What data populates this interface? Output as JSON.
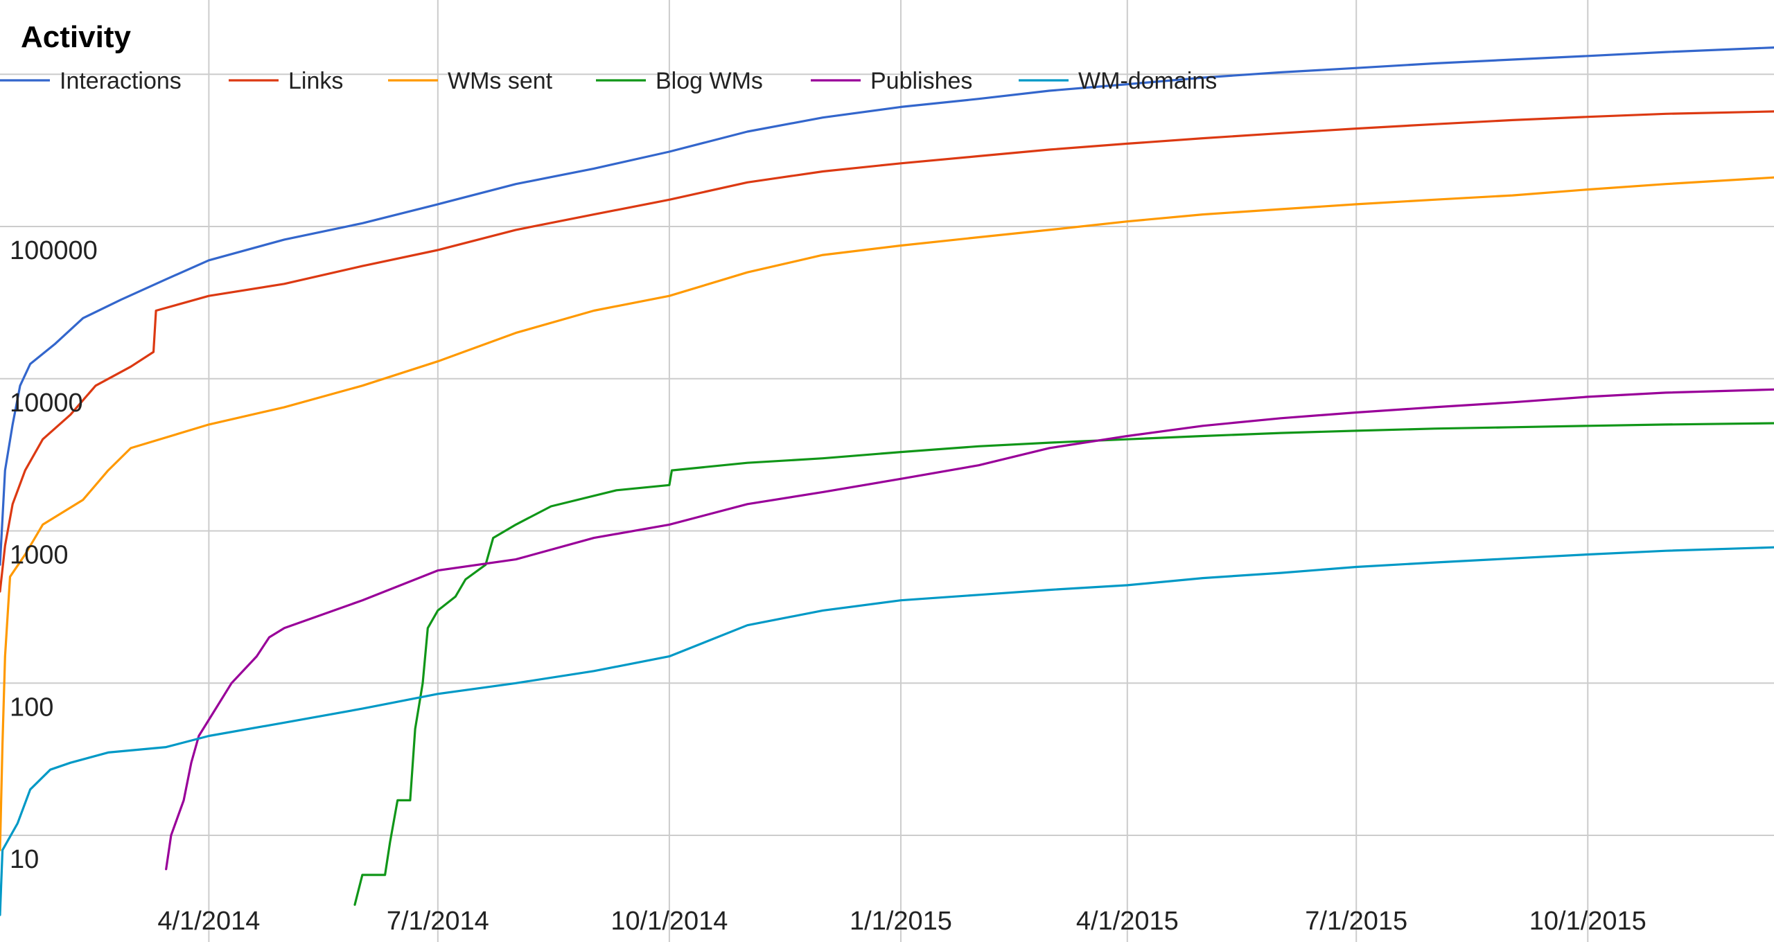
{
  "chart_data": {
    "type": "line",
    "title": "Activity",
    "xlabel": "",
    "ylabel": "",
    "y_scale": "log",
    "x_ticks": [
      "4/1/2014",
      "7/1/2014",
      "10/1/2014",
      "1/1/2015",
      "4/1/2015",
      "7/1/2015",
      "10/1/2015"
    ],
    "y_ticks": [
      10,
      100,
      1000,
      10000,
      100000
    ],
    "y_tick_labels": [
      "10",
      "100",
      "1000",
      "10000",
      "100000"
    ],
    "xlim": [
      "2014-01-08",
      "2015-12-14"
    ],
    "ylim": [
      3,
      2000000
    ],
    "grid": true,
    "legend_position": "top",
    "series": [
      {
        "name": "Interactions",
        "color": "#3366cc",
        "points": [
          [
            "2014-01-08",
            600
          ],
          [
            "2014-01-10",
            2500
          ],
          [
            "2014-01-13",
            5000
          ],
          [
            "2014-01-16",
            9000
          ],
          [
            "2014-01-20",
            12500
          ],
          [
            "2014-01-30",
            17000
          ],
          [
            "2014-02-10",
            25000
          ],
          [
            "2014-02-25",
            33000
          ],
          [
            "2014-03-15",
            45000
          ],
          [
            "2014-04-01",
            60000
          ],
          [
            "2014-05-01",
            82000
          ],
          [
            "2014-06-01",
            105000
          ],
          [
            "2014-07-01",
            140000
          ],
          [
            "2014-08-01",
            190000
          ],
          [
            "2014-09-01",
            240000
          ],
          [
            "2014-10-01",
            310000
          ],
          [
            "2014-11-01",
            420000
          ],
          [
            "2014-12-01",
            520000
          ],
          [
            "2015-01-01",
            610000
          ],
          [
            "2015-02-01",
            690000
          ],
          [
            "2015-03-01",
            780000
          ],
          [
            "2015-04-01",
            860000
          ],
          [
            "2015-05-01",
            950000
          ],
          [
            "2015-06-01",
            1030000
          ],
          [
            "2015-07-01",
            1100000
          ],
          [
            "2015-08-01",
            1180000
          ],
          [
            "2015-09-01",
            1250000
          ],
          [
            "2015-10-01",
            1320000
          ],
          [
            "2015-11-01",
            1400000
          ],
          [
            "2015-12-14",
            1500000
          ]
        ]
      },
      {
        "name": "Links",
        "color": "#dc3912",
        "points": [
          [
            "2014-01-08",
            400
          ],
          [
            "2014-01-10",
            800
          ],
          [
            "2014-01-13",
            1500
          ],
          [
            "2014-01-18",
            2500
          ],
          [
            "2014-01-25",
            4000
          ],
          [
            "2014-02-05",
            5800
          ],
          [
            "2014-02-15",
            9000
          ],
          [
            "2014-03-01",
            12000
          ],
          [
            "2014-03-10",
            15000
          ],
          [
            "2014-03-11",
            28000
          ],
          [
            "2014-04-01",
            35000
          ],
          [
            "2014-05-01",
            42000
          ],
          [
            "2014-06-01",
            55000
          ],
          [
            "2014-07-01",
            70000
          ],
          [
            "2014-08-01",
            95000
          ],
          [
            "2014-09-01",
            120000
          ],
          [
            "2014-10-01",
            150000
          ],
          [
            "2014-11-01",
            195000
          ],
          [
            "2014-12-01",
            230000
          ],
          [
            "2015-01-01",
            260000
          ],
          [
            "2015-02-01",
            290000
          ],
          [
            "2015-03-01",
            320000
          ],
          [
            "2015-04-01",
            350000
          ],
          [
            "2015-05-01",
            380000
          ],
          [
            "2015-06-01",
            410000
          ],
          [
            "2015-07-01",
            440000
          ],
          [
            "2015-08-01",
            470000
          ],
          [
            "2015-09-01",
            500000
          ],
          [
            "2015-10-01",
            525000
          ],
          [
            "2015-11-01",
            550000
          ],
          [
            "2015-12-14",
            570000
          ]
        ]
      },
      {
        "name": "WMs sent",
        "color": "#ff9900",
        "points": [
          [
            "2014-01-08",
            8
          ],
          [
            "2014-01-09",
            40
          ],
          [
            "2014-01-10",
            150
          ],
          [
            "2014-01-12",
            500
          ],
          [
            "2014-01-18",
            700
          ],
          [
            "2014-01-25",
            1100
          ],
          [
            "2014-02-10",
            1600
          ],
          [
            "2014-02-20",
            2500
          ],
          [
            "2014-03-01",
            3500
          ],
          [
            "2014-04-01",
            5000
          ],
          [
            "2014-05-01",
            6500
          ],
          [
            "2014-06-01",
            9000
          ],
          [
            "2014-07-01",
            13000
          ],
          [
            "2014-08-01",
            20000
          ],
          [
            "2014-09-01",
            28000
          ],
          [
            "2014-10-01",
            35000
          ],
          [
            "2014-11-01",
            50000
          ],
          [
            "2014-12-01",
            65000
          ],
          [
            "2015-01-01",
            75000
          ],
          [
            "2015-02-01",
            85000
          ],
          [
            "2015-03-01",
            95000
          ],
          [
            "2015-04-01",
            108000
          ],
          [
            "2015-05-01",
            120000
          ],
          [
            "2015-06-01",
            130000
          ],
          [
            "2015-07-01",
            140000
          ],
          [
            "2015-08-01",
            150000
          ],
          [
            "2015-09-01",
            160000
          ],
          [
            "2015-10-01",
            175000
          ],
          [
            "2015-11-01",
            190000
          ],
          [
            "2015-12-14",
            210000
          ]
        ]
      },
      {
        "name": "Blog WMs",
        "color": "#109618",
        "points": [
          [
            "2014-05-29",
            3.5
          ],
          [
            "2014-06-01",
            5.5
          ],
          [
            "2014-06-10",
            5.5
          ],
          [
            "2014-06-12",
            9
          ],
          [
            "2014-06-15",
            17
          ],
          [
            "2014-06-20",
            17
          ],
          [
            "2014-06-22",
            50
          ],
          [
            "2014-06-25",
            100
          ],
          [
            "2014-06-27",
            230
          ],
          [
            "2014-07-01",
            300
          ],
          [
            "2014-07-08",
            370
          ],
          [
            "2014-07-12",
            480
          ],
          [
            "2014-07-20",
            600
          ],
          [
            "2014-07-23",
            900
          ],
          [
            "2014-08-01",
            1100
          ],
          [
            "2014-08-15",
            1450
          ],
          [
            "2014-09-10",
            1850
          ],
          [
            "2014-10-01",
            2000
          ],
          [
            "2014-10-02",
            2500
          ],
          [
            "2014-11-01",
            2800
          ],
          [
            "2014-12-01",
            3000
          ],
          [
            "2015-01-01",
            3300
          ],
          [
            "2015-02-01",
            3600
          ],
          [
            "2015-03-01",
            3800
          ],
          [
            "2015-04-01",
            4000
          ],
          [
            "2015-05-01",
            4200
          ],
          [
            "2015-06-01",
            4400
          ],
          [
            "2015-07-01",
            4550
          ],
          [
            "2015-08-01",
            4700
          ],
          [
            "2015-09-01",
            4800
          ],
          [
            "2015-10-01",
            4900
          ],
          [
            "2015-11-01",
            5000
          ],
          [
            "2015-12-14",
            5100
          ]
        ]
      },
      {
        "name": "Publishes",
        "color": "#990099",
        "points": [
          [
            "2014-03-15",
            6
          ],
          [
            "2014-03-17",
            10
          ],
          [
            "2014-03-22",
            17
          ],
          [
            "2014-03-25",
            30
          ],
          [
            "2014-03-28",
            45
          ],
          [
            "2014-04-03",
            65
          ],
          [
            "2014-04-10",
            100
          ],
          [
            "2014-04-20",
            150
          ],
          [
            "2014-04-25",
            200
          ],
          [
            "2014-05-01",
            230
          ],
          [
            "2014-06-01",
            350
          ],
          [
            "2014-07-01",
            550
          ],
          [
            "2014-08-01",
            650
          ],
          [
            "2014-09-01",
            900
          ],
          [
            "2014-10-01",
            1100
          ],
          [
            "2014-11-01",
            1500
          ],
          [
            "2014-12-01",
            1800
          ],
          [
            "2015-01-01",
            2200
          ],
          [
            "2015-02-01",
            2700
          ],
          [
            "2015-03-01",
            3500
          ],
          [
            "2015-04-01",
            4200
          ],
          [
            "2015-05-01",
            4900
          ],
          [
            "2015-06-01",
            5500
          ],
          [
            "2015-07-01",
            6000
          ],
          [
            "2015-08-01",
            6500
          ],
          [
            "2015-09-01",
            7000
          ],
          [
            "2015-10-01",
            7600
          ],
          [
            "2015-11-01",
            8100
          ],
          [
            "2015-12-14",
            8500
          ]
        ]
      },
      {
        "name": "WM-domains",
        "color": "#0099c6",
        "points": [
          [
            "2014-01-08",
            3
          ],
          [
            "2014-01-09",
            8
          ],
          [
            "2014-01-15",
            12
          ],
          [
            "2014-01-20",
            20
          ],
          [
            "2014-01-28",
            27
          ],
          [
            "2014-02-05",
            30
          ],
          [
            "2014-02-20",
            35
          ],
          [
            "2014-03-15",
            38
          ],
          [
            "2014-04-01",
            45
          ],
          [
            "2014-05-01",
            55
          ],
          [
            "2014-06-01",
            68
          ],
          [
            "2014-07-01",
            85
          ],
          [
            "2014-08-01",
            100
          ],
          [
            "2014-09-01",
            120
          ],
          [
            "2014-10-01",
            150
          ],
          [
            "2014-11-01",
            240
          ],
          [
            "2014-12-01",
            300
          ],
          [
            "2015-01-01",
            350
          ],
          [
            "2015-02-01",
            380
          ],
          [
            "2015-03-01",
            410
          ],
          [
            "2015-04-01",
            440
          ],
          [
            "2015-05-01",
            490
          ],
          [
            "2015-06-01",
            530
          ],
          [
            "2015-07-01",
            580
          ],
          [
            "2015-08-01",
            620
          ],
          [
            "2015-09-01",
            660
          ],
          [
            "2015-10-01",
            700
          ],
          [
            "2015-11-01",
            740
          ],
          [
            "2015-12-14",
            780
          ]
        ]
      }
    ]
  }
}
